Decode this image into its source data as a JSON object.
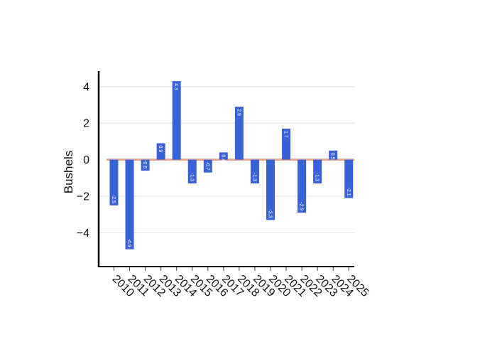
{
  "chart_data": {
    "type": "bar",
    "title": "",
    "xlabel": "",
    "ylabel": "Bushels",
    "categories": [
      "2010",
      "2011",
      "2012",
      "2013",
      "2014",
      "2015",
      "2016",
      "2017",
      "2018",
      "2019",
      "2020",
      "2021",
      "2022",
      "2023",
      "2024",
      "2025"
    ],
    "values": [
      -2.5,
      -4.9,
      -0.6,
      0.9,
      4.3,
      -1.3,
      -0.7,
      0.4,
      2.9,
      -1.3,
      -3.3,
      1.7,
      -2.9,
      -1.3,
      0.5,
      -2.1
    ],
    "data_labels": [
      "-2.5",
      "-4.9",
      "-0.6",
      "0.9",
      "4.3",
      "-1.3",
      "-0.7",
      "0.4",
      "2.9",
      "-1.3",
      "-3.3",
      "1.7",
      "-2.9",
      "-1.3",
      "0.5",
      "-2.1"
    ],
    "y_ticks": [
      -4,
      -2,
      0,
      2,
      4
    ],
    "y_tick_labels": [
      "−4",
      "−2",
      "0",
      "2",
      "4"
    ],
    "ylim": [
      -5.85,
      4.85
    ],
    "grid": true,
    "legend": "none",
    "colors": {
      "bar": "#3a62d8",
      "zero_line": "#e8a58f",
      "grid": "#e5e7ec",
      "axis": "#000000",
      "bar_label": "#ffffff"
    }
  }
}
